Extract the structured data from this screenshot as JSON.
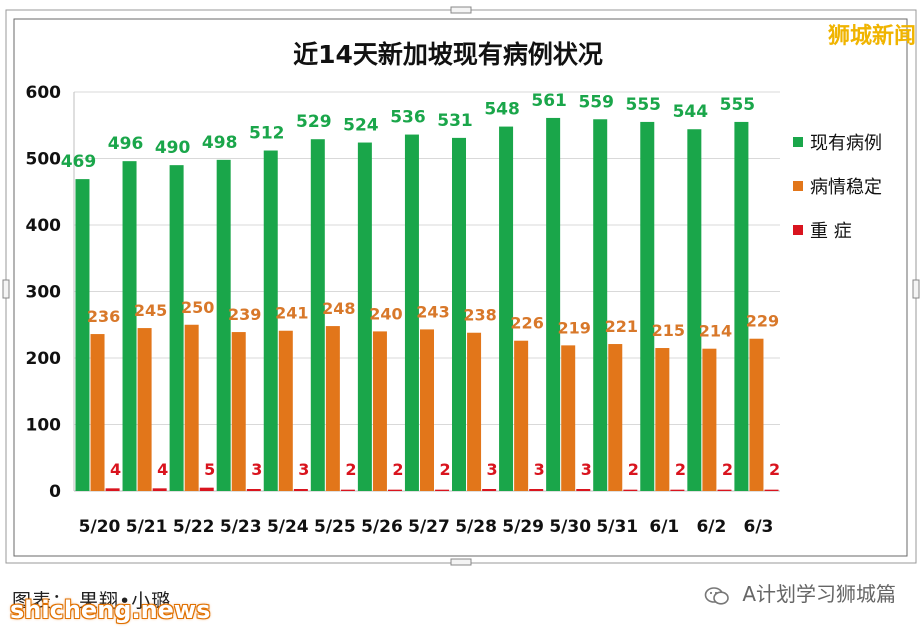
{
  "watermark_top": "狮城新闻",
  "credit_text": "图表： 果翔•小璐",
  "watermark_bottom": "shicheng.news",
  "account_name": "A计划学习狮城篇",
  "colors": {
    "green": "#1aa64a",
    "orange": "#e2761a",
    "red": "#d9141e",
    "green_label": "#1aa64a",
    "orange_label": "#d8782a",
    "red_label": "#d9141e"
  },
  "chart_data": {
    "type": "bar",
    "title": "近14天新加坡现有病例状况",
    "categories": [
      "5/20",
      "5/21",
      "5/22",
      "5/23",
      "5/24",
      "5/25",
      "5/26",
      "5/27",
      "5/28",
      "5/29",
      "5/30",
      "5/31",
      "6/1",
      "6/2",
      "6/3"
    ],
    "series": [
      {
        "name": "现有病例",
        "values": [
          469,
          496,
          490,
          498,
          512,
          529,
          524,
          536,
          531,
          548,
          561,
          559,
          555,
          544,
          555
        ]
      },
      {
        "name": "病情稳定",
        "values": [
          236,
          245,
          250,
          239,
          241,
          248,
          240,
          243,
          238,
          226,
          219,
          221,
          215,
          214,
          229
        ]
      },
      {
        "name": "重 症",
        "values": [
          4,
          4,
          5,
          3,
          3,
          2,
          2,
          2,
          3,
          3,
          3,
          2,
          2,
          2,
          2
        ]
      }
    ],
    "yticks": [
      "0",
      "100",
      "200",
      "300",
      "400",
      "500",
      "600"
    ],
    "ylim": [
      0,
      600
    ],
    "legend_position": "right",
    "grid": true
  }
}
